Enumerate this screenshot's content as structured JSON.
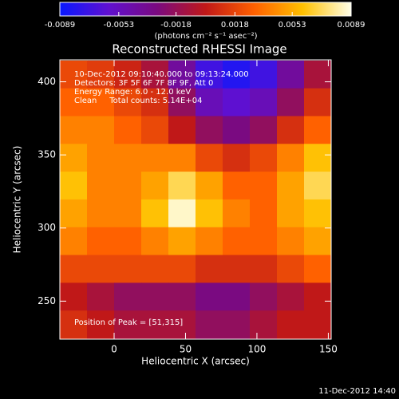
{
  "chart_data": {
    "type": "heatmap",
    "title": "Reconstructed RHESSI Image",
    "xlabel": "Heliocentric X (arcsec)",
    "ylabel": "Heliocentric Y (arcsec)",
    "xlim": [
      -38,
      152
    ],
    "xticks": [
      0,
      50,
      100,
      150
    ],
    "ylim": [
      224,
      415
    ],
    "yticks": [
      250,
      300,
      350,
      400
    ],
    "x": [
      -28.5,
      -9.5,
      9.5,
      28.5,
      47.5,
      66.5,
      85.5,
      104.5,
      123.5,
      142.5
    ],
    "y": [
      405,
      386,
      367,
      348,
      329,
      310,
      291,
      272,
      253,
      234
    ],
    "z": [
      [
        0.002,
        0.0015,
        0.0005,
        -0.001,
        -0.004,
        -0.007,
        -0.008,
        -0.007,
        -0.004,
        -0.001
      ],
      [
        0.003,
        0.003,
        0.002,
        0.001,
        -0.002,
        -0.005,
        -0.006,
        -0.005,
        -0.002,
        0.001
      ],
      [
        0.004,
        0.004,
        0.003,
        0.002,
        0.0,
        -0.002,
        -0.003,
        -0.002,
        0.001,
        0.003
      ],
      [
        0.005,
        0.004,
        0.004,
        0.004,
        0.004,
        0.002,
        0.001,
        0.002,
        0.004,
        0.006
      ],
      [
        0.006,
        0.004,
        0.004,
        0.005,
        0.007,
        0.005,
        0.003,
        0.003,
        0.005,
        0.007
      ],
      [
        0.005,
        0.004,
        0.004,
        0.006,
        0.0085,
        0.006,
        0.004,
        0.003,
        0.005,
        0.006
      ],
      [
        0.004,
        0.003,
        0.003,
        0.004,
        0.005,
        0.004,
        0.003,
        0.003,
        0.004,
        0.005
      ],
      [
        0.002,
        0.002,
        0.002,
        0.002,
        0.002,
        0.001,
        0.001,
        0.001,
        0.002,
        0.003
      ],
      [
        0.0,
        -0.001,
        -0.002,
        -0.002,
        -0.002,
        -0.003,
        -0.003,
        -0.002,
        -0.001,
        0.0
      ],
      [
        0.001,
        0.0,
        -0.001,
        -0.001,
        -0.001,
        -0.002,
        -0.002,
        -0.001,
        0.0,
        0.0
      ]
    ],
    "zlim": [
      -0.0089,
      0.0089
    ],
    "zticks": [
      -0.0089,
      -0.0053,
      -0.0018,
      0.0018,
      0.0053,
      0.0089
    ],
    "colorbar_label": "(photons cm⁻² s⁻¹ asec⁻²)",
    "colorscale": [
      "#0818ff",
      "#6010d0",
      "#7a0a80",
      "#c01818",
      "#ff6000",
      "#ffc000",
      "#ffffe8"
    ],
    "annotations": [
      "10-Dec-2012 09:10:40.000 to 09:13:24.000",
      "Detectors: 3F 5F 6F 7F 8F 9F, Att 0",
      "Energy Range: 6.0 - 12.0 keV",
      "Clean     Total counts: 5.14E+04"
    ],
    "peak_note": "Position of Peak = [51,315]",
    "footer": "11-Dec-2012 14:40"
  }
}
